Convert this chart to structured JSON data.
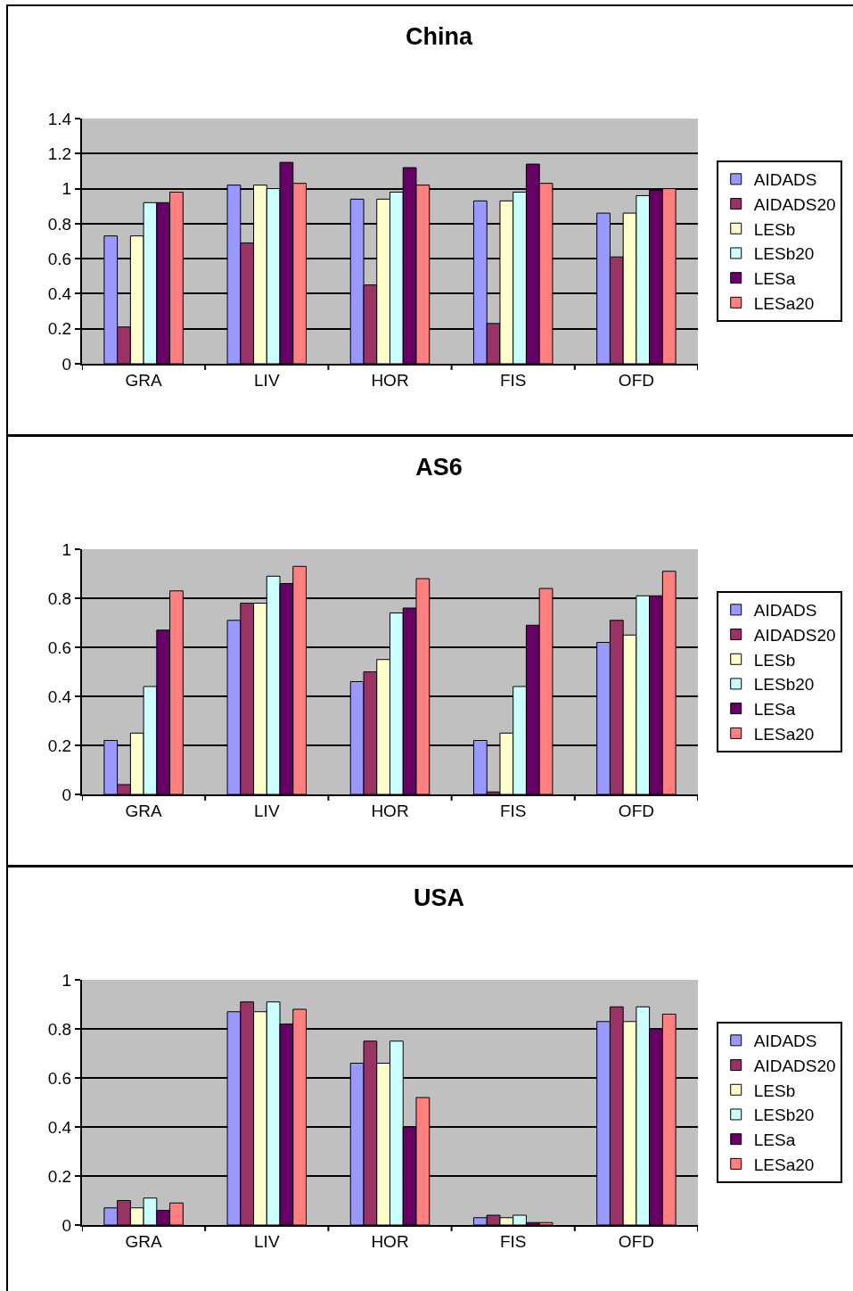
{
  "chart_data": [
    {
      "type": "bar",
      "title": "China",
      "categories": [
        "GRA",
        "LIV",
        "HOR",
        "FIS",
        "OFD"
      ],
      "ylim": [
        0,
        1.4
      ],
      "yticks": [
        0,
        0.2,
        0.4,
        0.6,
        0.8,
        1,
        1.2,
        1.4
      ],
      "grid": "y",
      "legend": "right",
      "series": [
        {
          "name": "AIDADS",
          "color": "#9999ff",
          "values": [
            0.73,
            1.02,
            0.94,
            0.93,
            0.86
          ]
        },
        {
          "name": "AIDADS20",
          "color": "#993366",
          "values": [
            0.21,
            0.69,
            0.45,
            0.23,
            0.61
          ]
        },
        {
          "name": "LESb",
          "color": "#ffffcc",
          "values": [
            0.73,
            1.02,
            0.94,
            0.93,
            0.86
          ]
        },
        {
          "name": "LESb20",
          "color": "#ccffff",
          "values": [
            0.92,
            1.0,
            0.98,
            0.98,
            0.96
          ]
        },
        {
          "name": "LESa",
          "color": "#660066",
          "values": [
            0.92,
            1.15,
            1.12,
            1.14,
            0.99
          ]
        },
        {
          "name": "LESa20",
          "color": "#ff8080",
          "values": [
            0.98,
            1.03,
            1.02,
            1.03,
            1.0
          ]
        }
      ]
    },
    {
      "type": "bar",
      "title": "AS6",
      "categories": [
        "GRA",
        "LIV",
        "HOR",
        "FIS",
        "OFD"
      ],
      "ylim": [
        0,
        1
      ],
      "yticks": [
        0,
        0.2,
        0.4,
        0.6,
        0.8,
        1
      ],
      "grid": "y",
      "legend": "right",
      "series": [
        {
          "name": "AIDADS",
          "color": "#9999ff",
          "values": [
            0.22,
            0.71,
            0.46,
            0.22,
            0.62
          ]
        },
        {
          "name": "AIDADS20",
          "color": "#993366",
          "values": [
            0.04,
            0.78,
            0.5,
            0.01,
            0.71
          ]
        },
        {
          "name": "LESb",
          "color": "#ffffcc",
          "values": [
            0.25,
            0.78,
            0.55,
            0.25,
            0.65
          ]
        },
        {
          "name": "LESb20",
          "color": "#ccffff",
          "values": [
            0.44,
            0.89,
            0.74,
            0.44,
            0.81
          ]
        },
        {
          "name": "LESa",
          "color": "#660066",
          "values": [
            0.67,
            0.86,
            0.76,
            0.69,
            0.81
          ]
        },
        {
          "name": "LESa20",
          "color": "#ff8080",
          "values": [
            0.83,
            0.93,
            0.88,
            0.84,
            0.91
          ]
        }
      ]
    },
    {
      "type": "bar",
      "title": "USA",
      "categories": [
        "GRA",
        "LIV",
        "HOR",
        "FIS",
        "OFD"
      ],
      "ylim": [
        0,
        1
      ],
      "yticks": [
        0,
        0.2,
        0.4,
        0.6,
        0.8,
        1
      ],
      "grid": "y",
      "legend": "right",
      "series": [
        {
          "name": "AIDADS",
          "color": "#9999ff",
          "values": [
            0.07,
            0.87,
            0.66,
            0.03,
            0.83
          ]
        },
        {
          "name": "AIDADS20",
          "color": "#993366",
          "values": [
            0.1,
            0.91,
            0.75,
            0.04,
            0.89
          ]
        },
        {
          "name": "LESb",
          "color": "#ffffcc",
          "values": [
            0.07,
            0.87,
            0.66,
            0.03,
            0.83
          ]
        },
        {
          "name": "LESb20",
          "color": "#ccffff",
          "values": [
            0.11,
            0.91,
            0.75,
            0.04,
            0.89
          ]
        },
        {
          "name": "LESa",
          "color": "#660066",
          "values": [
            0.06,
            0.82,
            0.4,
            0.01,
            0.8
          ]
        },
        {
          "name": "LESa20",
          "color": "#ff8080",
          "values": [
            0.09,
            0.88,
            0.52,
            0.01,
            0.86
          ]
        }
      ]
    }
  ]
}
